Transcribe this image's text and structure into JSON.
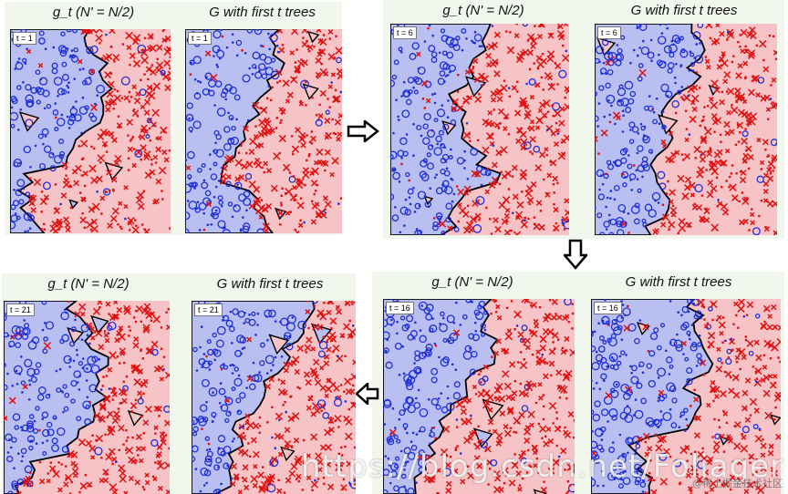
{
  "panels": [
    {
      "title_left": "g_t (N' = N/2)",
      "title_right": "G with first t trees",
      "t_left": "t = 1",
      "t_right": "t = 1"
    },
    {
      "title_left": "g_t (N' = N/2)",
      "title_right": "G with first t trees",
      "t_left": "t = 6",
      "t_right": "t = 6"
    },
    {
      "title_left": "g_t (N' = N/2)",
      "title_right": "G with first t trees",
      "t_left": "t = 16",
      "t_right": "t = 16"
    },
    {
      "title_left": "g_t (N' = N/2)",
      "title_right": "G with first t trees",
      "t_left": "t = 21",
      "t_right": "t = 21"
    }
  ],
  "colors": {
    "blue_region": "#b9bff0",
    "red_region": "#f6c4c6",
    "blue_mark": "#1f2fd8",
    "red_mark": "#e01010",
    "boundary": "#000000",
    "panel_bg": "#f1f7ec"
  },
  "arrows": [
    {
      "direction": "right",
      "name": "arrow-right"
    },
    {
      "direction": "down",
      "name": "arrow-down"
    },
    {
      "direction": "left",
      "name": "arrow-left"
    }
  ],
  "watermark": {
    "url_text": "https://blog.csdn.net/Foliager",
    "brand_text": "@稀土掘金技术社区"
  }
}
